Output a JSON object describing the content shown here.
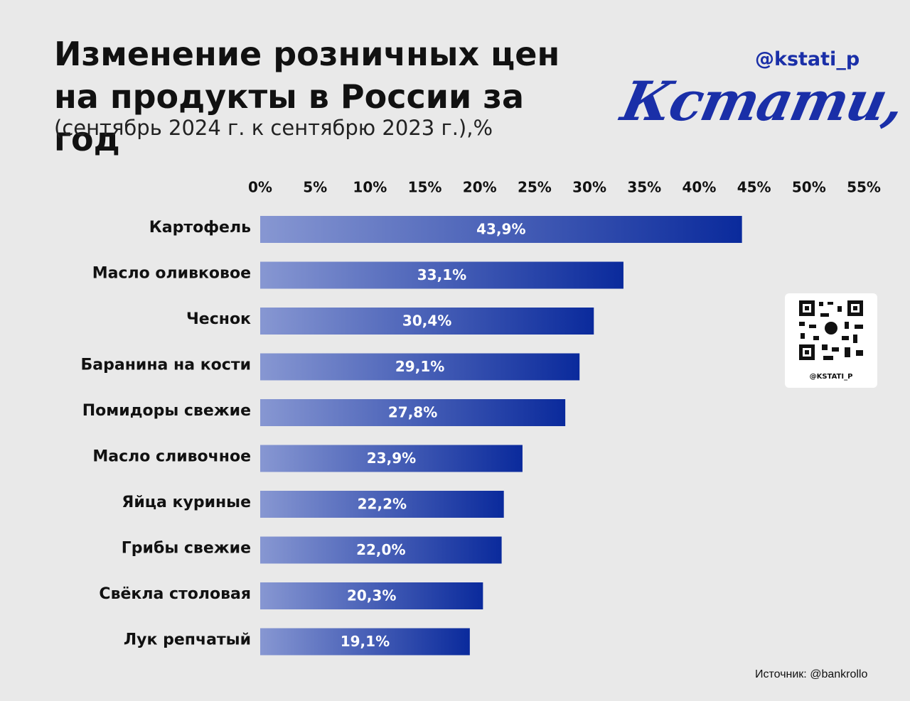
{
  "chart_data": {
    "type": "bar",
    "orientation": "horizontal",
    "title": "Изменение розничных цен на продукты в России за год",
    "subtitle": "(сентябрь 2024 г. к сентябрю 2023 г.),%",
    "brand_handle": "@kstati_p",
    "brand_logo": "Кстати,",
    "qr_label": "@KSTATI_P",
    "source": "Источник:  @bankrollo",
    "categories": [
      "Картофель",
      "Масло оливковое",
      "Чеснок",
      "Баранина на кости",
      "Помидоры свежие",
      "Масло сливочное",
      "Яйца куриные",
      "Грибы свежие",
      "Свёкла столовая",
      "Лук репчатый"
    ],
    "values": [
      43.9,
      33.1,
      30.4,
      29.1,
      27.8,
      23.9,
      22.2,
      22.0,
      20.3,
      19.1
    ],
    "value_labels": [
      "43,9%",
      "33,1%",
      "30,4%",
      "29,1%",
      "27,8%",
      "23,9%",
      "22,2%",
      "22,0%",
      "20,3%",
      "19,1%"
    ],
    "color": [
      "#8797d2",
      "#0a2a9c"
    ],
    "xlim": [
      0,
      55
    ],
    "xticks": [
      {
        "value": 0,
        "label": "0%"
      },
      {
        "value": 5,
        "label": "5%"
      },
      {
        "value": 10,
        "label": "10%"
      },
      {
        "value": 15,
        "label": "15%"
      },
      {
        "value": 20,
        "label": "20%"
      },
      {
        "value": 25,
        "label": "25%"
      },
      {
        "value": 30,
        "label": "30%"
      },
      {
        "value": 35,
        "label": "35%"
      },
      {
        "value": 40,
        "label": "40%"
      },
      {
        "value": 45,
        "label": "45%"
      },
      {
        "value": 50,
        "label": "50%"
      },
      {
        "value": 55,
        "label": "55%"
      }
    ],
    "grid": false
  }
}
